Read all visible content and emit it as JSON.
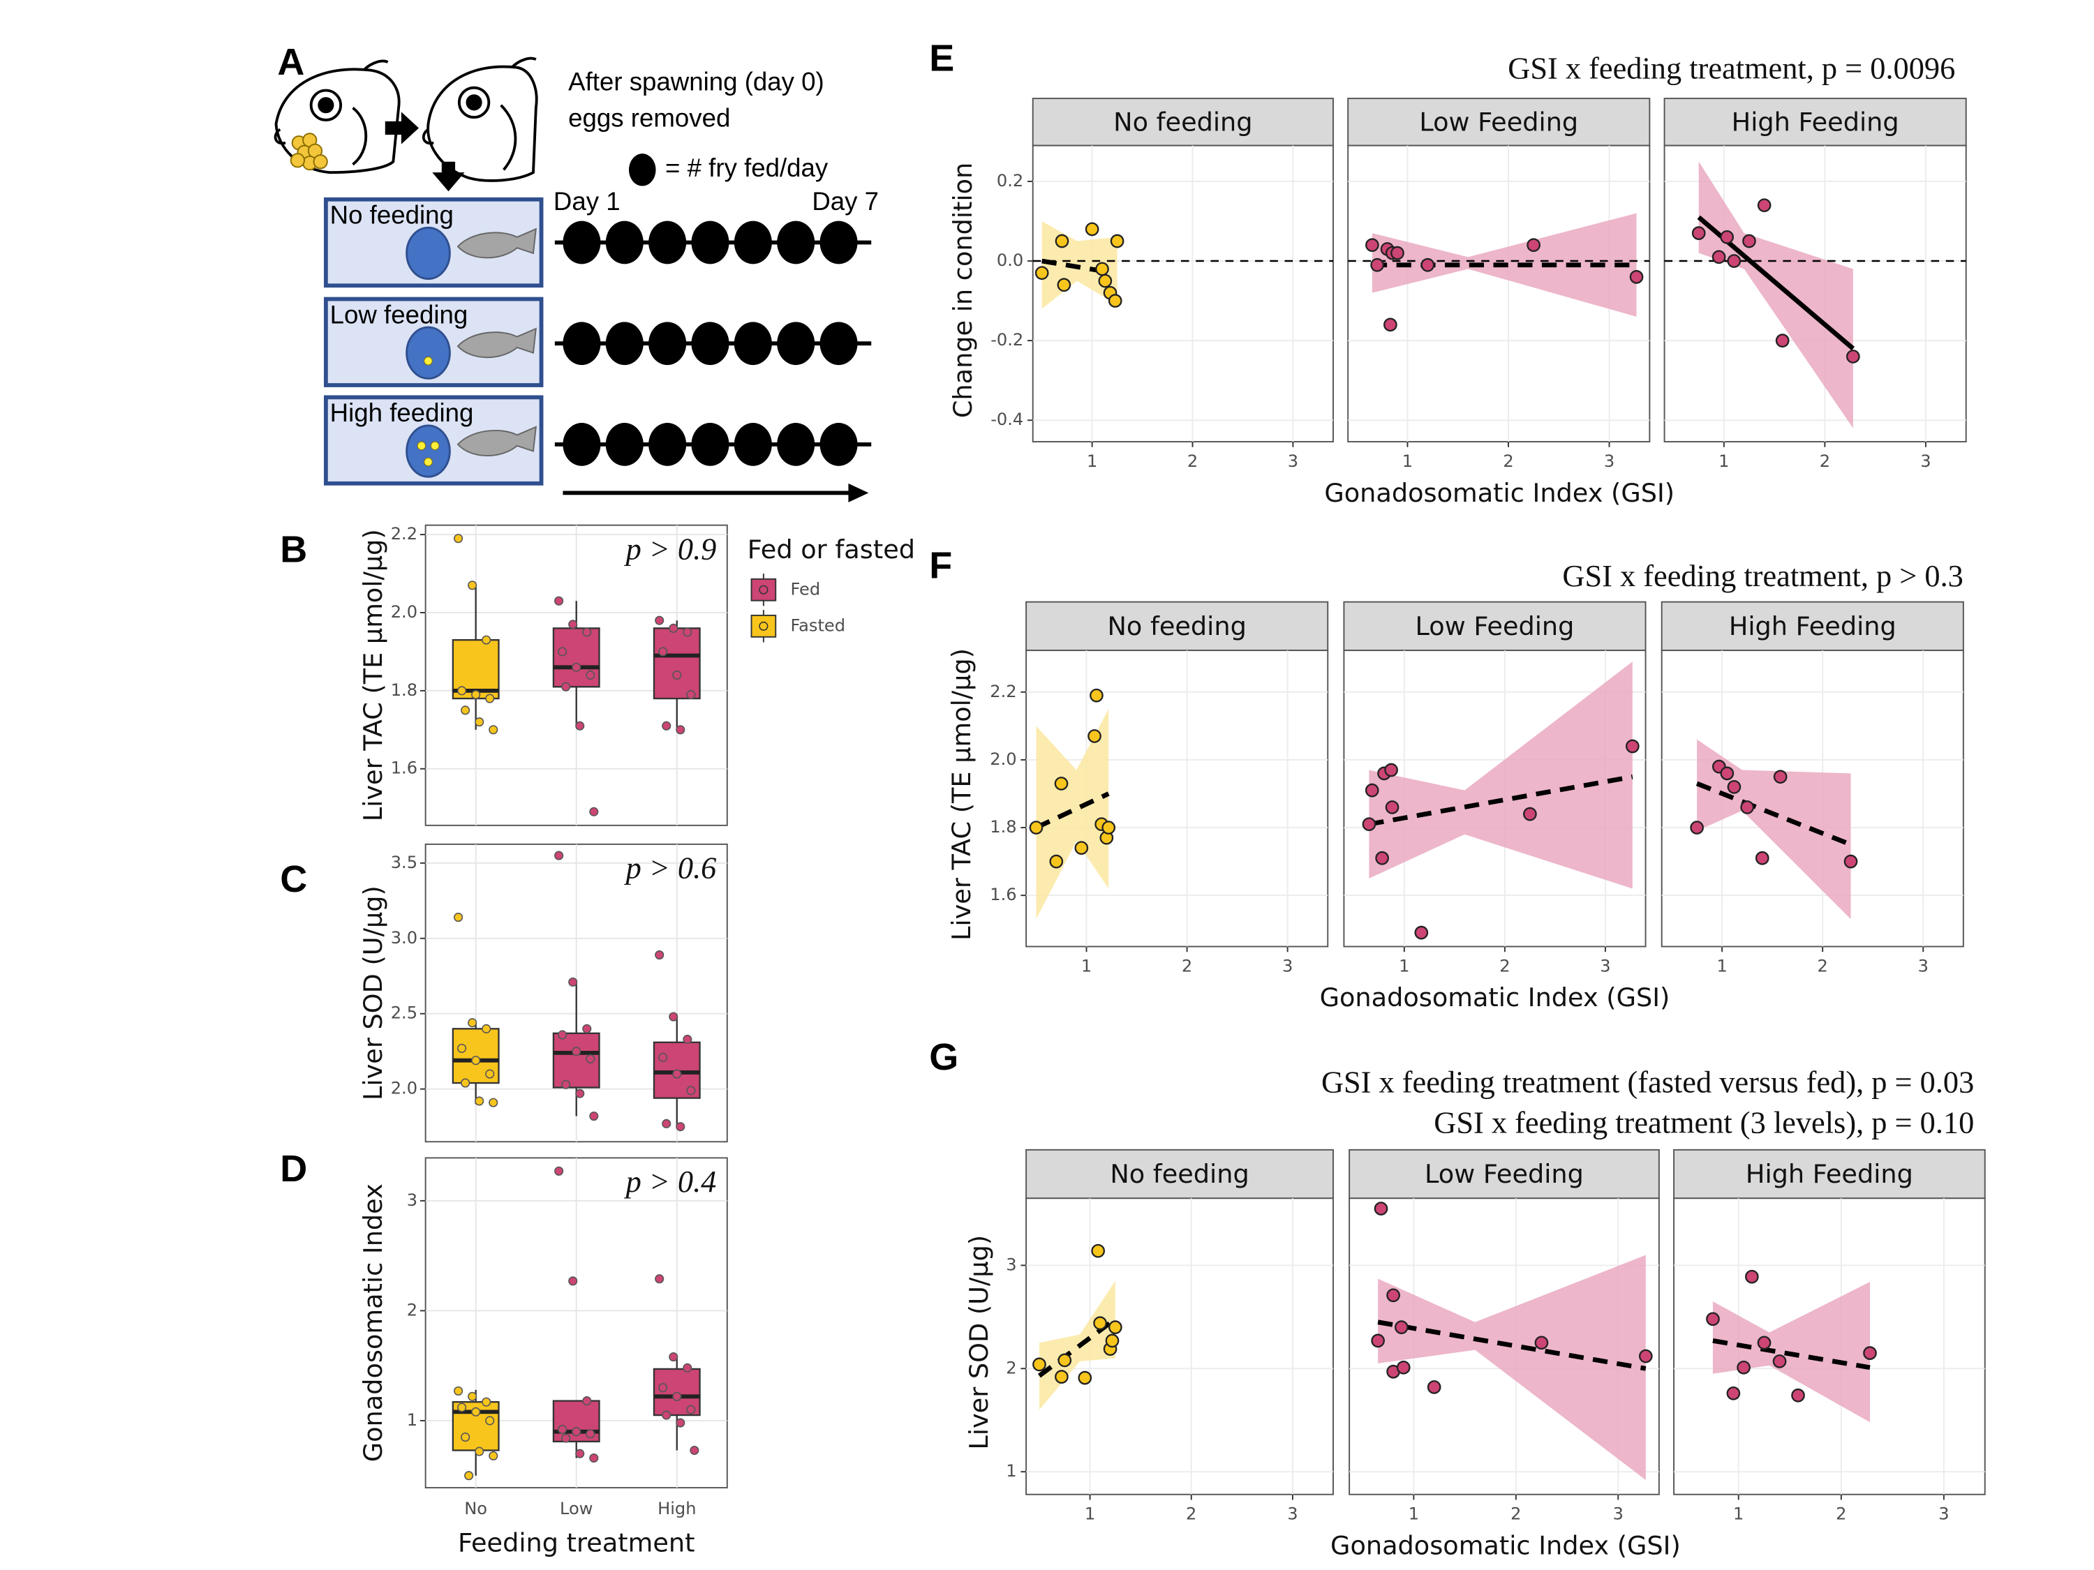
{
  "diagram": {
    "label": "A",
    "caption": [
      "After spawning (day 0)",
      "eggs removed"
    ],
    "key": "= # fry fed/day",
    "day_start": "Day 1",
    "day_end": "Day 7",
    "treatments": [
      {
        "name": "No feeding",
        "fry_per_day": [
          0,
          0,
          0,
          0,
          0,
          0,
          0
        ]
      },
      {
        "name": "Low feeding",
        "fry_per_day": [
          1,
          1,
          1,
          1,
          1,
          1,
          1
        ]
      },
      {
        "name": "High feeding",
        "fry_per_day": [
          3,
          3,
          3,
          3,
          3,
          3,
          3
        ]
      }
    ]
  },
  "chart_data": [
    {
      "type": "box",
      "label": "B",
      "ylabel": "Liver TAC (TE µmol/µg)",
      "annotation": "p > 0.9",
      "ylim": [
        1.455,
        2.224
      ],
      "yticks": [
        1.6,
        1.8,
        {
          "value": 2,
          "label": "2.0"
        },
        2.2
      ],
      "grid": true,
      "legend": {
        "title": "Fed or fasted",
        "position": "right"
      },
      "series": [
        {
          "name": "Fed",
          "color": "#cc4574"
        },
        {
          "name": "Fasted",
          "color": "#f8c51c"
        }
      ],
      "boxes": [
        {
          "color": "#f8c51c",
          "min": 1.7,
          "q1": 1.78,
          "median": 1.8,
          "q3": 1.93,
          "max": 2.07,
          "points": [
            2.19,
            2.07,
            1.93,
            1.8,
            1.79,
            1.78,
            1.75,
            1.72,
            1.7
          ]
        },
        {
          "color": "#cc4574",
          "min": 1.71,
          "q1": 1.81,
          "median": 1.86,
          "q3": 1.96,
          "max": 2.03,
          "points": [
            2.03,
            1.97,
            1.95,
            1.9,
            1.86,
            1.84,
            1.81,
            1.71,
            1.49
          ]
        },
        {
          "color": "#cc4574",
          "min": 1.7,
          "q1": 1.78,
          "median": 1.89,
          "q3": 1.96,
          "max": 1.98,
          "points": [
            1.98,
            1.96,
            1.95,
            1.9,
            1.84,
            1.79,
            1.71,
            1.7
          ]
        }
      ]
    },
    {
      "type": "box",
      "label": "C",
      "ylabel": "Liver SOD (U/µg)",
      "annotation": "p > 0.6",
      "ylim": [
        1.65,
        3.625
      ],
      "yticks": [
        {
          "value": 2,
          "label": "2.0"
        },
        2.5,
        {
          "value": 3,
          "label": "3.0"
        },
        3.5
      ],
      "grid": true,
      "boxes": [
        {
          "color": "#f8c51c",
          "min": 1.9,
          "q1": 2.04,
          "median": 2.19,
          "q3": 2.4,
          "max": 2.44,
          "points": [
            3.14,
            2.44,
            2.4,
            2.27,
            2.19,
            2.1,
            2.04,
            1.92,
            1.91
          ]
        },
        {
          "color": "#cc4574",
          "min": 1.82,
          "q1": 2.01,
          "median": 2.24,
          "q3": 2.37,
          "max": 2.71,
          "points": [
            3.55,
            2.71,
            2.4,
            2.36,
            2.25,
            2.2,
            2.03,
            1.97,
            1.82
          ]
        },
        {
          "color": "#cc4574",
          "min": 1.75,
          "q1": 1.94,
          "median": 2.11,
          "q3": 2.31,
          "max": 2.48,
          "points": [
            2.89,
            2.48,
            2.33,
            2.21,
            2.1,
            1.99,
            1.77,
            1.75
          ]
        }
      ]
    },
    {
      "type": "box",
      "label": "D",
      "ylabel": "Gonadosomatic Index",
      "annotation": "p > 0.4",
      "xlabel": "Feeding treatment",
      "categories": [
        "No",
        "Low",
        "High"
      ],
      "ylim": [
        0.39,
        3.39
      ],
      "yticks": [
        1,
        2,
        3
      ],
      "grid": true,
      "boxes": [
        {
          "color": "#f8c51c",
          "min": 0.5,
          "q1": 0.73,
          "median": 1.08,
          "q3": 1.17,
          "max": 1.28,
          "points": [
            1.27,
            1.22,
            1.17,
            1.12,
            1.08,
            1.0,
            0.85,
            0.72,
            0.68,
            0.5
          ]
        },
        {
          "color": "#cc4574",
          "min": 0.66,
          "q1": 0.81,
          "median": 0.9,
          "q3": 1.18,
          "max": 1.18,
          "points": [
            3.27,
            2.27,
            1.18,
            0.92,
            0.9,
            0.88,
            0.84,
            0.7,
            0.66
          ]
        },
        {
          "color": "#cc4574",
          "min": 0.73,
          "q1": 1.05,
          "median": 1.22,
          "q3": 1.47,
          "max": 1.58,
          "points": [
            2.29,
            1.58,
            1.48,
            1.3,
            1.22,
            1.1,
            1.05,
            0.98,
            0.73
          ]
        }
      ]
    },
    {
      "type": "scatter",
      "label": "E",
      "title": [
        "GSI x feeding treatment, p = 0.0096"
      ],
      "xlabel": "Gonadosomatic Index (GSI)",
      "ylabel": "Change in condition",
      "xlim": [
        0.41,
        3.4
      ],
      "xticks": [
        1,
        2,
        3
      ],
      "ylim": [
        -0.454,
        0.29
      ],
      "yticks": [
        0.2,
        {
          "value": 0,
          "label": "0.0"
        },
        -0.2,
        -0.4
      ],
      "hline": 0,
      "grid": true,
      "facets": [
        {
          "name": "No feeding",
          "color": "#f8c51c",
          "band_color": "#fce7a0",
          "x": [
            0.5,
            0.7,
            0.72,
            1.0,
            1.1,
            1.13,
            1.18,
            1.23,
            1.25
          ],
          "y": [
            -0.03,
            0.05,
            -0.06,
            0.08,
            -0.02,
            -0.05,
            -0.08,
            -0.1,
            0.05
          ],
          "fit": {
            "x": [
              0.5,
              1.1
            ],
            "y": [
              0.0,
              -0.025
            ],
            "style": "dashed"
          },
          "band": {
            "x": [
              0.5,
              0.85,
              1.25
            ],
            "lower": [
              -0.12,
              -0.05,
              -0.11
            ],
            "upper": [
              0.1,
              0.05,
              0.06
            ]
          }
        },
        {
          "name": "Low Feeding",
          "color": "#cc4574",
          "band_color": "#eaa9c1",
          "x": [
            0.65,
            0.7,
            0.8,
            0.85,
            0.9,
            0.83,
            1.2,
            2.25,
            3.27
          ],
          "y": [
            0.04,
            -0.01,
            0.03,
            0.02,
            0.02,
            -0.16,
            -0.01,
            0.04,
            -0.04
          ],
          "fit": {
            "x": [
              0.65,
              3.27
            ],
            "y": [
              -0.01,
              -0.01
            ],
            "style": "dashed"
          },
          "band": {
            "x": [
              0.65,
              1.6,
              3.27
            ],
            "lower": [
              -0.08,
              -0.02,
              -0.14
            ],
            "upper": [
              0.07,
              0.01,
              0.12
            ]
          }
        },
        {
          "name": "High Feeding",
          "color": "#cc4574",
          "band_color": "#eaa9c1",
          "x": [
            0.75,
            0.95,
            1.03,
            1.1,
            1.25,
            1.4,
            1.58,
            2.28
          ],
          "y": [
            0.07,
            0.01,
            0.06,
            0.0,
            0.05,
            0.14,
            -0.2,
            -0.24
          ],
          "fit": {
            "x": [
              0.75,
              2.28
            ],
            "y": [
              0.11,
              -0.22
            ],
            "style": "solid"
          },
          "band": {
            "x": [
              0.75,
              1.2,
              2.28
            ],
            "lower": [
              0.02,
              -0.02,
              -0.42
            ],
            "upper": [
              0.25,
              0.07,
              -0.02
            ]
          }
        }
      ]
    },
    {
      "type": "scatter",
      "label": "F",
      "title": [
        "GSI x feeding treatment, p > 0.3"
      ],
      "xlabel": "Gonadosomatic Index (GSI)",
      "ylabel": "Liver TAC (TE µmol/µg)",
      "xlim": [
        0.4,
        3.4
      ],
      "xticks": [
        1,
        2,
        3
      ],
      "ylim": [
        1.449,
        2.323
      ],
      "yticks": [
        1.6,
        1.8,
        {
          "value": 2,
          "label": "2.0"
        },
        2.2
      ],
      "grid": true,
      "facets": [
        {
          "name": "No feeding",
          "color": "#f8c51c",
          "band_color": "#fce7a0",
          "x": [
            0.5,
            0.7,
            0.75,
            0.95,
            1.08,
            1.1,
            1.15,
            1.2,
            1.22
          ],
          "y": [
            1.8,
            1.7,
            1.93,
            1.74,
            2.07,
            2.19,
            1.81,
            1.77,
            1.8
          ],
          "fit": {
            "x": [
              0.5,
              1.22
            ],
            "y": [
              1.8,
              1.9
            ],
            "style": "dashed"
          },
          "band": {
            "x": [
              0.5,
              0.9,
              1.22
            ],
            "lower": [
              1.53,
              1.76,
              1.62
            ],
            "upper": [
              2.1,
              1.97,
              2.15
            ]
          }
        },
        {
          "name": "Low Feeding",
          "color": "#cc4574",
          "band_color": "#eaa9c1",
          "x": [
            0.65,
            0.68,
            0.78,
            0.8,
            0.87,
            0.88,
            1.17,
            2.25,
            3.27
          ],
          "y": [
            1.81,
            1.91,
            1.71,
            1.96,
            1.97,
            1.86,
            1.49,
            1.84,
            2.04
          ],
          "fit": {
            "x": [
              0.65,
              3.27
            ],
            "y": [
              1.81,
              1.95
            ],
            "style": "dashed"
          },
          "band": {
            "x": [
              0.65,
              1.6,
              3.27
            ],
            "lower": [
              1.65,
              1.78,
              1.62
            ],
            "upper": [
              1.97,
              1.91,
              2.29
            ]
          }
        },
        {
          "name": "High Feeding",
          "color": "#cc4574",
          "band_color": "#eaa9c1",
          "x": [
            0.75,
            0.97,
            1.05,
            1.12,
            1.25,
            1.4,
            1.58,
            2.28
          ],
          "y": [
            1.8,
            1.98,
            1.96,
            1.92,
            1.86,
            1.71,
            1.95,
            1.7
          ],
          "fit": {
            "x": [
              0.75,
              2.28
            ],
            "y": [
              1.93,
              1.75
            ],
            "style": "dashed"
          },
          "band": {
            "x": [
              0.75,
              1.2,
              2.28
            ],
            "lower": [
              1.79,
              1.85,
              1.53
            ],
            "upper": [
              2.06,
              1.97,
              1.96
            ]
          }
        }
      ]
    },
    {
      "type": "scatter",
      "label": "G",
      "title": [
        "GSI x feeding treatment (fasted versus fed), p = 0.03",
        "GSI x feeding treatment (3 levels), p = 0.10"
      ],
      "xlabel": "Gonadosomatic Index (GSI)",
      "ylabel": "Liver SOD (U/µg)",
      "xlim": [
        0.37,
        3.4
      ],
      "xticks": [
        1,
        2,
        3
      ],
      "ylim": [
        0.78,
        3.65
      ],
      "yticks": [
        1,
        2,
        3
      ],
      "grid": true,
      "facets": [
        {
          "name": "No feeding",
          "color": "#f8c51c",
          "band_color": "#fce7a0",
          "x": [
            0.5,
            0.72,
            0.75,
            0.95,
            1.08,
            1.1,
            1.2,
            1.22,
            1.25
          ],
          "y": [
            2.04,
            1.92,
            2.08,
            1.91,
            3.14,
            2.44,
            2.19,
            2.27,
            2.4
          ],
          "fit": {
            "x": [
              0.5,
              1.25
            ],
            "y": [
              1.93,
              2.48
            ],
            "style": "dashed"
          },
          "band": {
            "x": [
              0.5,
              0.9,
              1.25
            ],
            "lower": [
              1.6,
              2.07,
              2.1
            ],
            "upper": [
              2.25,
              2.33,
              2.85
            ]
          }
        },
        {
          "name": "Low Feeding",
          "color": "#cc4574",
          "band_color": "#eaa9c1",
          "x": [
            0.68,
            0.65,
            0.8,
            0.8,
            0.88,
            0.9,
            1.2,
            2.25,
            3.27
          ],
          "y": [
            3.55,
            2.27,
            2.71,
            1.97,
            2.4,
            2.01,
            1.82,
            2.25,
            2.12
          ],
          "fit": {
            "x": [
              0.65,
              3.27
            ],
            "y": [
              2.45,
              2.0
            ],
            "style": "dashed"
          },
          "band": {
            "x": [
              0.65,
              1.6,
              3.27
            ],
            "lower": [
              2.05,
              2.18,
              0.92
            ],
            "upper": [
              2.87,
              2.45,
              3.1
            ]
          }
        },
        {
          "name": "High Feeding",
          "color": "#cc4574",
          "band_color": "#eaa9c1",
          "x": [
            0.75,
            0.95,
            1.05,
            1.13,
            1.25,
            1.4,
            1.58,
            2.28
          ],
          "y": [
            2.48,
            1.76,
            2.01,
            2.89,
            2.25,
            2.07,
            1.74,
            2.15
          ],
          "fit": {
            "x": [
              0.75,
              2.28
            ],
            "y": [
              2.27,
              2.01
            ],
            "style": "dashed"
          },
          "band": {
            "x": [
              0.75,
              1.3,
              2.28
            ],
            "lower": [
              1.95,
              2.03,
              1.48
            ],
            "upper": [
              2.65,
              2.35,
              2.84
            ]
          }
        }
      ]
    }
  ]
}
